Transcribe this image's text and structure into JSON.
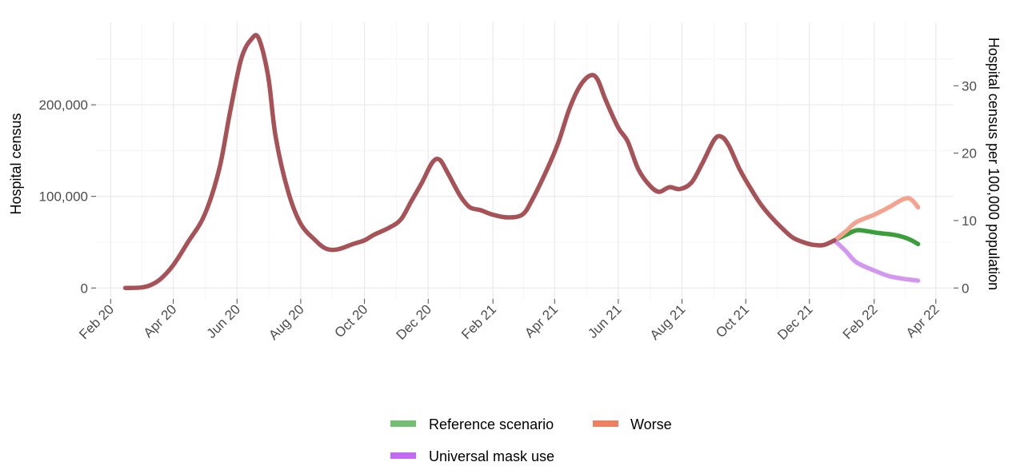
{
  "chart_data": {
    "type": "line",
    "title": "",
    "xlabel": "",
    "ylabel": "Hospital census",
    "ylabel_right": "Hospital census per 100,000 population",
    "x_ticks": [
      {
        "date": "2020-02-01",
        "label": "Feb 20"
      },
      {
        "date": "2020-04-01",
        "label": "Apr 20"
      },
      {
        "date": "2020-06-01",
        "label": "Jun 20"
      },
      {
        "date": "2020-08-01",
        "label": "Aug 20"
      },
      {
        "date": "2020-10-01",
        "label": "Oct 20"
      },
      {
        "date": "2020-12-01",
        "label": "Dec 20"
      },
      {
        "date": "2021-02-01",
        "label": "Feb 21"
      },
      {
        "date": "2021-04-01",
        "label": "Apr 21"
      },
      {
        "date": "2021-06-01",
        "label": "Jun 21"
      },
      {
        "date": "2021-08-01",
        "label": "Aug 21"
      },
      {
        "date": "2021-10-01",
        "label": "Oct 21"
      },
      {
        "date": "2021-12-01",
        "label": "Dec 21"
      },
      {
        "date": "2022-02-01",
        "label": "Feb 22"
      },
      {
        "date": "2022-04-01",
        "label": "Apr 22"
      }
    ],
    "y_ticks": [
      {
        "value": 0,
        "label": "0"
      },
      {
        "value": 100000,
        "label": "100,000"
      },
      {
        "value": 200000,
        "label": "200,000"
      }
    ],
    "y_right_ticks": [
      {
        "value": 0,
        "label": "0"
      },
      {
        "value": 10,
        "label": "10"
      },
      {
        "value": 20,
        "label": "20"
      },
      {
        "value": 30,
        "label": "30"
      }
    ],
    "y_right_scale": 7360,
    "xlim": [
      "2020-01-18",
      "2022-04-18"
    ],
    "ylim": [
      -12000,
      290000
    ],
    "grid": true,
    "legend_position": "bottom",
    "historical": {
      "color": "#a65257",
      "points": [
        [
          "2020-02-15",
          0
        ],
        [
          "2020-03-01",
          500
        ],
        [
          "2020-03-10",
          3000
        ],
        [
          "2020-03-20",
          10000
        ],
        [
          "2020-04-01",
          25000
        ],
        [
          "2020-04-15",
          50000
        ],
        [
          "2020-05-01",
          80000
        ],
        [
          "2020-05-15",
          130000
        ],
        [
          "2020-05-25",
          190000
        ],
        [
          "2020-06-05",
          250000
        ],
        [
          "2020-06-15",
          272000
        ],
        [
          "2020-06-22",
          272000
        ],
        [
          "2020-07-01",
          230000
        ],
        [
          "2020-07-08",
          165000
        ],
        [
          "2020-07-20",
          105000
        ],
        [
          "2020-08-01",
          70000
        ],
        [
          "2020-08-15",
          52000
        ],
        [
          "2020-08-25",
          43000
        ],
        [
          "2020-09-05",
          42000
        ],
        [
          "2020-09-20",
          48000
        ],
        [
          "2020-10-01",
          52000
        ],
        [
          "2020-10-10",
          58000
        ],
        [
          "2020-10-25",
          66000
        ],
        [
          "2020-11-05",
          75000
        ],
        [
          "2020-11-15",
          95000
        ],
        [
          "2020-11-25",
          115000
        ],
        [
          "2020-12-05",
          137000
        ],
        [
          "2020-12-12",
          140000
        ],
        [
          "2020-12-20",
          125000
        ],
        [
          "2021-01-01",
          100000
        ],
        [
          "2021-01-10",
          88000
        ],
        [
          "2021-01-20",
          85000
        ],
        [
          "2021-02-01",
          80000
        ],
        [
          "2021-02-15",
          77000
        ],
        [
          "2021-03-01",
          80000
        ],
        [
          "2021-03-10",
          95000
        ],
        [
          "2021-03-25",
          130000
        ],
        [
          "2021-04-05",
          160000
        ],
        [
          "2021-04-15",
          195000
        ],
        [
          "2021-04-25",
          220000
        ],
        [
          "2021-05-05",
          232000
        ],
        [
          "2021-05-12",
          228000
        ],
        [
          "2021-05-20",
          205000
        ],
        [
          "2021-06-01",
          175000
        ],
        [
          "2021-06-10",
          160000
        ],
        [
          "2021-06-20",
          130000
        ],
        [
          "2021-07-01",
          112000
        ],
        [
          "2021-07-10",
          105000
        ],
        [
          "2021-07-20",
          110000
        ],
        [
          "2021-07-30",
          108000
        ],
        [
          "2021-08-10",
          115000
        ],
        [
          "2021-08-20",
          135000
        ],
        [
          "2021-09-01",
          162000
        ],
        [
          "2021-09-08",
          165000
        ],
        [
          "2021-09-15",
          155000
        ],
        [
          "2021-09-25",
          130000
        ],
        [
          "2021-10-05",
          110000
        ],
        [
          "2021-10-15",
          92000
        ],
        [
          "2021-10-25",
          78000
        ],
        [
          "2021-11-05",
          65000
        ],
        [
          "2021-11-15",
          55000
        ],
        [
          "2021-11-25",
          50000
        ],
        [
          "2021-12-05",
          47000
        ],
        [
          "2021-12-15",
          47000
        ],
        [
          "2021-12-25",
          52000
        ]
      ]
    },
    "series": [
      {
        "name": "Reference scenario",
        "color": "#3a9e3a",
        "legend_color": "#74bf74",
        "points": [
          [
            "2021-12-25",
            52000
          ],
          [
            "2022-01-05",
            58000
          ],
          [
            "2022-01-15",
            63000
          ],
          [
            "2022-01-25",
            62000
          ],
          [
            "2022-02-05",
            60000
          ],
          [
            "2022-02-20",
            58000
          ],
          [
            "2022-03-05",
            54000
          ],
          [
            "2022-03-15",
            48000
          ]
        ]
      },
      {
        "name": "Worse",
        "color": "#f4a48e",
        "legend_color": "#ee8062",
        "points": [
          [
            "2021-12-25",
            52000
          ],
          [
            "2022-01-05",
            62000
          ],
          [
            "2022-01-15",
            72000
          ],
          [
            "2022-02-01",
            80000
          ],
          [
            "2022-02-15",
            88000
          ],
          [
            "2022-03-01",
            97000
          ],
          [
            "2022-03-08",
            97000
          ],
          [
            "2022-03-15",
            88000
          ]
        ]
      },
      {
        "name": "Universal mask use",
        "color": "#d397ef",
        "legend_color": "#c36af0",
        "points": [
          [
            "2021-12-25",
            52000
          ],
          [
            "2022-01-05",
            40000
          ],
          [
            "2022-01-15",
            28000
          ],
          [
            "2022-02-01",
            19000
          ],
          [
            "2022-02-15",
            13000
          ],
          [
            "2022-03-01",
            10000
          ],
          [
            "2022-03-15",
            8000
          ]
        ]
      }
    ]
  }
}
